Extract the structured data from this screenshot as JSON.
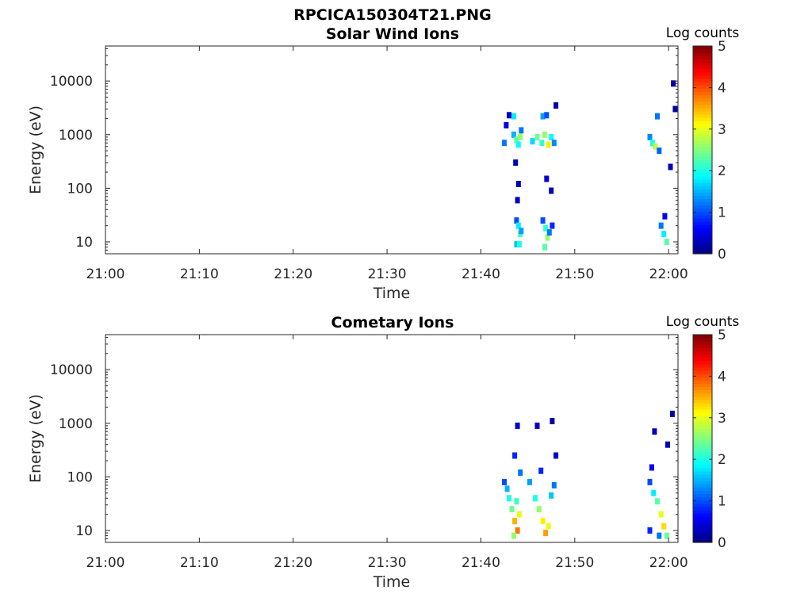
{
  "figure_title": "RPCICA150304T21.PNG",
  "chart_data": [
    {
      "type": "heatmap",
      "title": "Solar Wind Ions",
      "xlabel": "Time",
      "ylabel": "Energy (eV)",
      "x_ticks": [
        "21:00",
        "21:10",
        "21:20",
        "21:30",
        "21:40",
        "21:50",
        "22:00"
      ],
      "x_range_minutes": [
        0,
        61
      ],
      "y_scale": "log",
      "y_ticks": [
        10,
        100,
        1000,
        10000
      ],
      "y_tick_labels": [
        "10",
        "100",
        "1000",
        "10000"
      ],
      "y_range": [
        6,
        45000
      ],
      "colorbar": {
        "label": "Log counts",
        "range": [
          0,
          5
        ],
        "ticks": [
          "0",
          "1",
          "2",
          "3",
          "4",
          "5"
        ],
        "colormap": "jet"
      },
      "grid": false,
      "cells": [
        {
          "t": 42.5,
          "e": 700,
          "v": 1.2
        },
        {
          "t": 42.7,
          "e": 1500,
          "v": 0.5
        },
        {
          "t": 43.0,
          "e": 2300,
          "v": 0.3
        },
        {
          "t": 43.5,
          "e": 2200,
          "v": 1.8
        },
        {
          "t": 43.5,
          "e": 1000,
          "v": 1.5
        },
        {
          "t": 43.8,
          "e": 800,
          "v": 2.3
        },
        {
          "t": 44.0,
          "e": 650,
          "v": 1.9
        },
        {
          "t": 44.2,
          "e": 900,
          "v": 2.6
        },
        {
          "t": 44.3,
          "e": 1200,
          "v": 1.2
        },
        {
          "t": 43.7,
          "e": 300,
          "v": 0.3
        },
        {
          "t": 44.0,
          "e": 120,
          "v": 0.2
        },
        {
          "t": 43.9,
          "e": 60,
          "v": 0.3
        },
        {
          "t": 43.8,
          "e": 25,
          "v": 1.0
        },
        {
          "t": 44.0,
          "e": 20,
          "v": 1.8
        },
        {
          "t": 44.2,
          "e": 14,
          "v": 2.2
        },
        {
          "t": 43.8,
          "e": 9,
          "v": 1.6
        },
        {
          "t": 44.1,
          "e": 9,
          "v": 2.0
        },
        {
          "t": 44.3,
          "e": 16,
          "v": 1.4
        },
        {
          "t": 45.5,
          "e": 750,
          "v": 1.7
        },
        {
          "t": 46.0,
          "e": 900,
          "v": 2.4
        },
        {
          "t": 46.5,
          "e": 700,
          "v": 2.1
        },
        {
          "t": 46.8,
          "e": 1000,
          "v": 2.6
        },
        {
          "t": 47.2,
          "e": 650,
          "v": 3.2
        },
        {
          "t": 47.5,
          "e": 900,
          "v": 1.9
        },
        {
          "t": 46.6,
          "e": 2200,
          "v": 1.4
        },
        {
          "t": 47.0,
          "e": 2300,
          "v": 1.0
        },
        {
          "t": 47.8,
          "e": 700,
          "v": 1.3
        },
        {
          "t": 46.6,
          "e": 25,
          "v": 1.0
        },
        {
          "t": 46.9,
          "e": 18,
          "v": 2.1
        },
        {
          "t": 47.1,
          "e": 12,
          "v": 2.6
        },
        {
          "t": 46.8,
          "e": 8,
          "v": 2.3
        },
        {
          "t": 47.3,
          "e": 15,
          "v": 1.2
        },
        {
          "t": 47.6,
          "e": 20,
          "v": 0.8
        },
        {
          "t": 47.0,
          "e": 150,
          "v": 0.4
        },
        {
          "t": 47.5,
          "e": 90,
          "v": 0.3
        },
        {
          "t": 48.0,
          "e": 3500,
          "v": 0.2
        },
        {
          "t": 58.0,
          "e": 900,
          "v": 1.3
        },
        {
          "t": 58.3,
          "e": 700,
          "v": 2.0
        },
        {
          "t": 58.6,
          "e": 600,
          "v": 2.8
        },
        {
          "t": 58.8,
          "e": 2200,
          "v": 1.2
        },
        {
          "t": 59.0,
          "e": 500,
          "v": 1.1
        },
        {
          "t": 59.2,
          "e": 20,
          "v": 1.2
        },
        {
          "t": 59.5,
          "e": 14,
          "v": 1.8
        },
        {
          "t": 59.8,
          "e": 10,
          "v": 2.3
        },
        {
          "t": 59.6,
          "e": 30,
          "v": 0.6
        },
        {
          "t": 60.5,
          "e": 9000,
          "v": 0.2
        },
        {
          "t": 60.7,
          "e": 3000,
          "v": 0.2
        },
        {
          "t": 60.2,
          "e": 250,
          "v": 0.3
        }
      ]
    },
    {
      "type": "heatmap",
      "title": "Cometary Ions",
      "xlabel": "Time",
      "ylabel": "Energy (eV)",
      "x_ticks": [
        "21:00",
        "21:10",
        "21:20",
        "21:30",
        "21:40",
        "21:50",
        "22:00"
      ],
      "x_range_minutes": [
        0,
        61
      ],
      "y_scale": "log",
      "y_ticks": [
        10,
        100,
        1000,
        10000
      ],
      "y_tick_labels": [
        "10",
        "100",
        "1000",
        "10000"
      ],
      "y_range": [
        6,
        45000
      ],
      "colorbar": {
        "label": "Log counts",
        "range": [
          0,
          5
        ],
        "ticks": [
          "0",
          "1",
          "2",
          "3",
          "4",
          "5"
        ],
        "colormap": "jet"
      },
      "grid": false,
      "cells": [
        {
          "t": 42.5,
          "e": 80,
          "v": 1.0
        },
        {
          "t": 42.8,
          "e": 60,
          "v": 1.5
        },
        {
          "t": 43.0,
          "e": 40,
          "v": 2.0
        },
        {
          "t": 43.3,
          "e": 25,
          "v": 2.4
        },
        {
          "t": 43.6,
          "e": 15,
          "v": 3.5
        },
        {
          "t": 43.9,
          "e": 10,
          "v": 3.8
        },
        {
          "t": 44.1,
          "e": 20,
          "v": 3.0
        },
        {
          "t": 43.5,
          "e": 8,
          "v": 2.6
        },
        {
          "t": 43.8,
          "e": 35,
          "v": 2.2
        },
        {
          "t": 44.2,
          "e": 120,
          "v": 1.2
        },
        {
          "t": 43.6,
          "e": 250,
          "v": 0.8
        },
        {
          "t": 43.9,
          "e": 900,
          "v": 0.4
        },
        {
          "t": 45.2,
          "e": 80,
          "v": 1.4
        },
        {
          "t": 45.8,
          "e": 40,
          "v": 2.0
        },
        {
          "t": 46.2,
          "e": 25,
          "v": 2.6
        },
        {
          "t": 46.6,
          "e": 15,
          "v": 3.2
        },
        {
          "t": 46.9,
          "e": 9,
          "v": 3.6
        },
        {
          "t": 47.2,
          "e": 12,
          "v": 3.0
        },
        {
          "t": 47.5,
          "e": 45,
          "v": 1.6
        },
        {
          "t": 47.8,
          "e": 70,
          "v": 1.2
        },
        {
          "t": 46.4,
          "e": 130,
          "v": 0.8
        },
        {
          "t": 46.0,
          "e": 900,
          "v": 0.3
        },
        {
          "t": 47.6,
          "e": 1100,
          "v": 0.2
        },
        {
          "t": 48.0,
          "e": 250,
          "v": 0.4
        },
        {
          "t": 58.0,
          "e": 80,
          "v": 1.0
        },
        {
          "t": 58.4,
          "e": 50,
          "v": 1.8
        },
        {
          "t": 58.8,
          "e": 35,
          "v": 2.3
        },
        {
          "t": 59.2,
          "e": 20,
          "v": 3.0
        },
        {
          "t": 59.5,
          "e": 12,
          "v": 3.3
        },
        {
          "t": 59.8,
          "e": 8,
          "v": 2.4
        },
        {
          "t": 58.2,
          "e": 150,
          "v": 0.6
        },
        {
          "t": 58.5,
          "e": 700,
          "v": 0.3
        },
        {
          "t": 59.9,
          "e": 400,
          "v": 0.3
        },
        {
          "t": 60.4,
          "e": 1500,
          "v": 0.2
        },
        {
          "t": 58.0,
          "e": 10,
          "v": 0.8
        },
        {
          "t": 59.0,
          "e": 8,
          "v": 1.2
        }
      ]
    }
  ]
}
